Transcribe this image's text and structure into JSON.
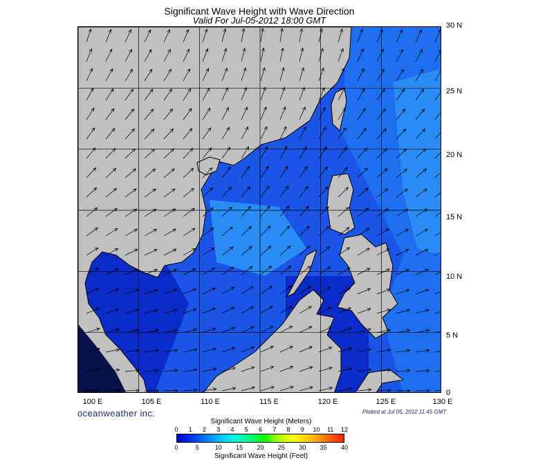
{
  "header": {
    "title": "Significant Wave Height with Wave Direction",
    "subtitle": "Valid For Jul-05-2012 18:00 GMT"
  },
  "map": {
    "lat_labels": [
      "30 N",
      "25 N",
      "20 N",
      "15 N",
      "10 N",
      "5 N",
      "0"
    ],
    "lon_labels": [
      "100 E",
      "105 E",
      "110 E",
      "115 E",
      "120 E",
      "125 E",
      "130 E"
    ],
    "land_color": "#c0c0c0",
    "water_colors": [
      "#0b2bc8",
      "#1a55e6",
      "#1e6ff0",
      "#2a8df5"
    ]
  },
  "footer": {
    "brand": "oceanweather inc.",
    "plotted": "Plotted at Jul 05, 2012 11:45 GMT"
  },
  "legend": {
    "title_meters": "Significant Wave Height (Meters)",
    "title_feet": "Significant Wave Height (Feet)",
    "meter_ticks": [
      "0",
      "1",
      "2",
      "3",
      "4",
      "5",
      "6",
      "7",
      "8",
      "9",
      "10",
      "11",
      "12"
    ],
    "feet_ticks": [
      "0",
      "5",
      "10",
      "15",
      "20",
      "25",
      "30",
      "35",
      "40"
    ]
  }
}
